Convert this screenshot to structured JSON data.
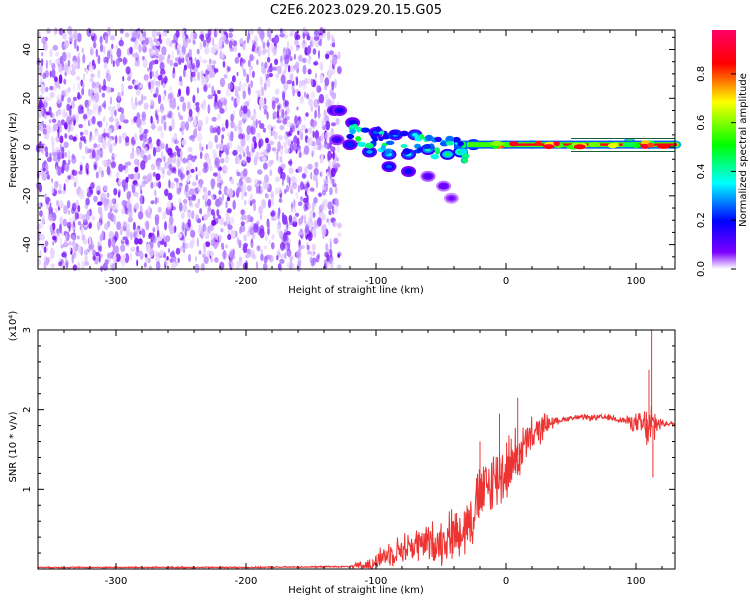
{
  "title": "C2E6.2023.029.20.15.G05",
  "chart_data": [
    {
      "type": "heatmap",
      "xlabel": "Height of straight line (km)",
      "ylabel": "Frequency (Hz)",
      "xlim": [
        -360,
        130
      ],
      "ylim": [
        -50,
        48
      ],
      "x_ticks": [
        -300,
        -200,
        -100,
        0,
        100
      ],
      "y_ticks": [
        -40,
        -20,
        0,
        20,
        40
      ],
      "noise_region_x": [
        -360,
        -128
      ],
      "ridge": [
        {
          "x": -132,
          "y": 15,
          "amp": 0.18
        },
        {
          "x": -128,
          "y": 15,
          "amp": 0.18
        },
        {
          "x": -118,
          "y": 10,
          "amp": 0.2
        },
        {
          "x": -100,
          "y": 6,
          "amp": 0.25
        },
        {
          "x": -85,
          "y": 5,
          "amp": 0.3
        },
        {
          "x": -70,
          "y": 5,
          "amp": 0.35
        },
        {
          "x": -130,
          "y": 3,
          "amp": 0.15
        },
        {
          "x": -120,
          "y": 1,
          "amp": 0.22
        },
        {
          "x": -105,
          "y": -2,
          "amp": 0.3
        },
        {
          "x": -90,
          "y": -3,
          "amp": 0.35
        },
        {
          "x": -75,
          "y": -3,
          "amp": 0.35
        },
        {
          "x": -60,
          "y": -1,
          "amp": 0.4
        },
        {
          "x": -45,
          "y": -3,
          "amp": 0.45
        },
        {
          "x": -35,
          "y": -2,
          "amp": 0.5
        },
        {
          "x": -25,
          "y": 1,
          "amp": 0.6
        },
        {
          "x": -10,
          "y": 1,
          "amp": 0.7
        },
        {
          "x": 0,
          "y": 1,
          "amp": 0.75
        },
        {
          "x": 20,
          "y": 1,
          "amp": 0.85
        },
        {
          "x": 50,
          "y": 1,
          "amp": 0.9
        },
        {
          "x": 80,
          "y": 1,
          "amp": 0.9
        },
        {
          "x": 95,
          "y": 2,
          "amp": 0.85
        },
        {
          "x": 110,
          "y": 1,
          "amp": 0.85
        },
        {
          "x": 130,
          "y": 1,
          "amp": 0.85
        },
        {
          "x": -90,
          "y": -8,
          "amp": 0.25
        },
        {
          "x": -75,
          "y": -10,
          "amp": 0.2
        },
        {
          "x": -60,
          "y": -12,
          "amp": 0.12
        },
        {
          "x": -48,
          "y": -16,
          "amp": 0.1
        },
        {
          "x": -42,
          "y": -21,
          "amp": 0.08
        }
      ],
      "colorbar": {
        "label": "Normalized spectral amplitude",
        "ticks": [
          "0.0",
          "0.2",
          "0.4",
          "0.6",
          "0.8"
        ],
        "range": [
          0,
          0.98
        ],
        "colors": [
          "#ffffff",
          "#7c00ff",
          "#0000ff",
          "#00ffff",
          "#00ff00",
          "#ffff00",
          "#ff0000",
          "#ff0066"
        ]
      }
    },
    {
      "type": "line",
      "xlabel": "Height of straight line (km)",
      "ylabel": "SNR (10 * v/v)",
      "y_scale_label": "(x10⁴)",
      "xlim": [
        -360,
        130
      ],
      "ylim": [
        0,
        3
      ],
      "x_ticks": [
        -300,
        -200,
        -100,
        0,
        100
      ],
      "y_ticks": [
        1,
        2,
        3
      ],
      "color": "#ee3333",
      "envelope": [
        {
          "x": -360,
          "y": 0.02
        },
        {
          "x": -200,
          "y": 0.02
        },
        {
          "x": -120,
          "y": 0.03
        },
        {
          "x": -105,
          "y": 0.05
        },
        {
          "x": -90,
          "y": 0.2
        },
        {
          "x": -70,
          "y": 0.3
        },
        {
          "x": -50,
          "y": 0.35
        },
        {
          "x": -30,
          "y": 0.55
        },
        {
          "x": -20,
          "y": 0.9
        },
        {
          "x": -10,
          "y": 1.1
        },
        {
          "x": 0,
          "y": 1.25
        },
        {
          "x": 10,
          "y": 1.45
        },
        {
          "x": 20,
          "y": 1.65
        },
        {
          "x": 30,
          "y": 1.82
        },
        {
          "x": 50,
          "y": 1.9
        },
        {
          "x": 80,
          "y": 1.9
        },
        {
          "x": 95,
          "y": 1.85
        },
        {
          "x": 105,
          "y": 1.8
        },
        {
          "x": 110,
          "y": 1.75
        },
        {
          "x": 115,
          "y": 1.83
        },
        {
          "x": 130,
          "y": 1.82
        }
      ],
      "noise_amplitude": [
        {
          "x": -360,
          "y": 0.01
        },
        {
          "x": -120,
          "y": 0.01
        },
        {
          "x": -100,
          "y": 0.15
        },
        {
          "x": -60,
          "y": 0.3
        },
        {
          "x": -20,
          "y": 0.5
        },
        {
          "x": 0,
          "y": 0.5
        },
        {
          "x": 20,
          "y": 0.3
        },
        {
          "x": 40,
          "y": 0.04
        },
        {
          "x": 90,
          "y": 0.05
        },
        {
          "x": 100,
          "y": 0.15
        },
        {
          "x": 112,
          "y": 0.4
        },
        {
          "x": 120,
          "y": 0.05
        },
        {
          "x": 130,
          "y": 0.03
        }
      ],
      "spikes": [
        {
          "x": 110,
          "y": 2.5
        },
        {
          "x": 112,
          "y": 3.0
        },
        {
          "x": 113,
          "y": 1.15
        },
        {
          "x": 9,
          "y": 2.15
        },
        {
          "x": -5,
          "y": 1.95
        },
        {
          "x": -20,
          "y": 1.6
        }
      ]
    }
  ]
}
